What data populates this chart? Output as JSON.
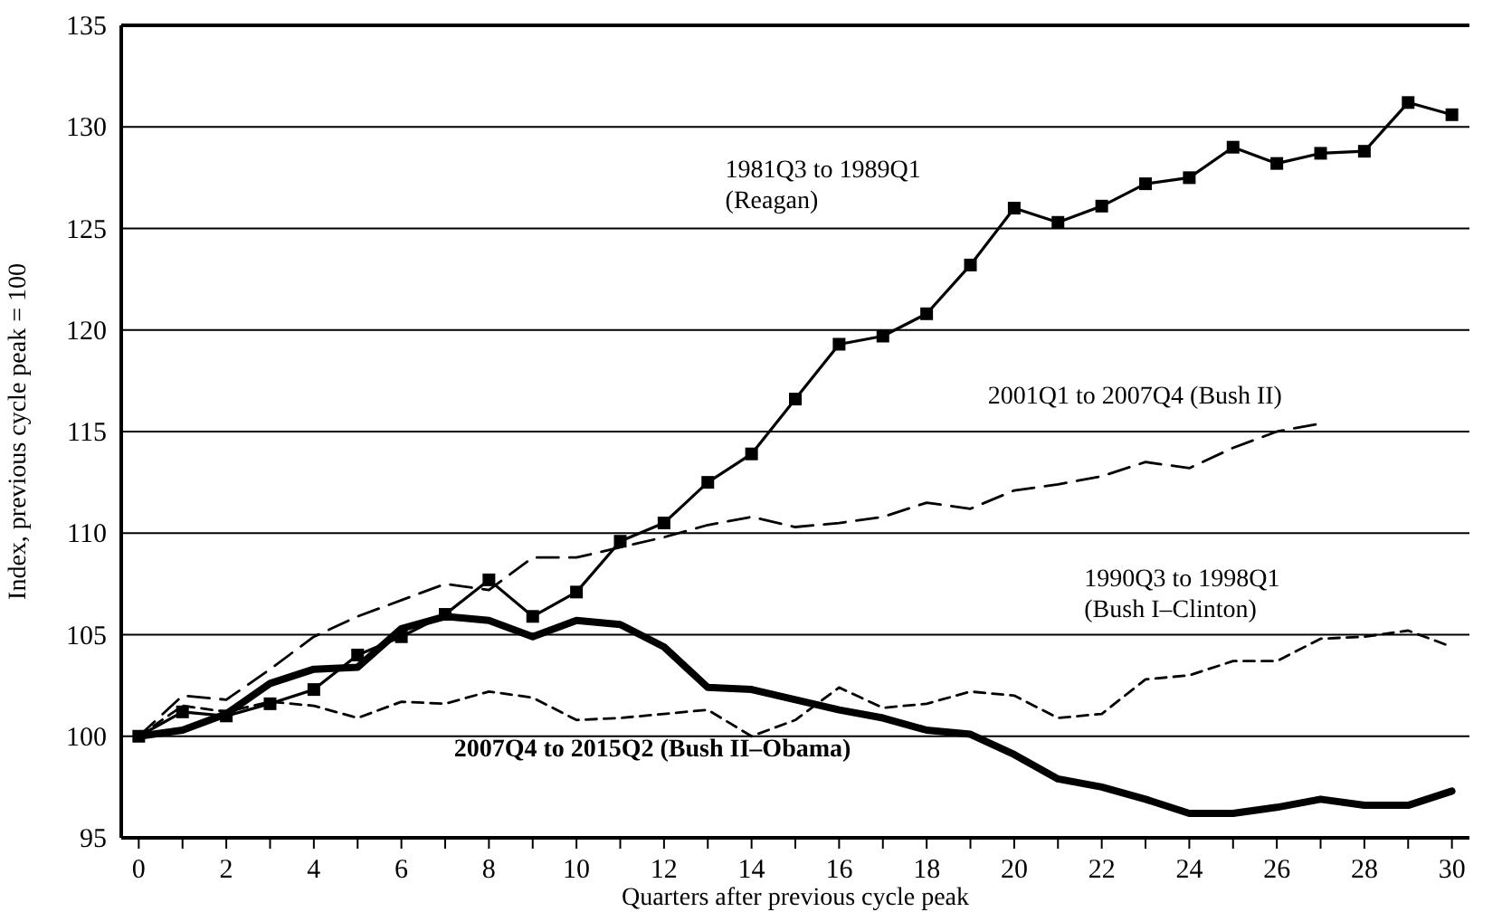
{
  "chart_data": {
    "type": "line",
    "xlabel": "Quarters after previous cycle peak",
    "ylabel": "Index, previous cycle peak = 100",
    "x": [
      0,
      1,
      2,
      3,
      4,
      5,
      6,
      7,
      8,
      9,
      10,
      11,
      12,
      13,
      14,
      15,
      16,
      17,
      18,
      19,
      20,
      21,
      22,
      23,
      24,
      25,
      26,
      27,
      28,
      29,
      30
    ],
    "xlim": [
      -0.4,
      30.4
    ],
    "xticks": [
      0,
      {
        "value": 1,
        "label": null
      },
      2,
      {
        "value": 3,
        "label": null
      },
      4,
      {
        "value": 5,
        "label": null
      },
      6,
      {
        "value": 7,
        "label": null
      },
      8,
      {
        "value": 9,
        "label": null
      },
      10,
      {
        "value": 11,
        "label": null
      },
      12,
      {
        "value": 13,
        "label": null
      },
      14,
      {
        "value": 15,
        "label": null
      },
      16,
      {
        "value": 17,
        "label": null
      },
      18,
      {
        "value": 19,
        "label": null
      },
      20,
      {
        "value": 21,
        "label": null
      },
      22,
      {
        "value": 23,
        "label": null
      },
      24,
      {
        "value": 25,
        "label": null
      },
      26,
      {
        "value": 27,
        "label": null
      },
      28,
      {
        "value": 29,
        "label": null
      },
      30
    ],
    "ylim": [
      95,
      135
    ],
    "yticks": [
      95,
      100,
      105,
      110,
      115,
      120,
      125,
      130,
      135
    ],
    "grid": "y",
    "series": [
      {
        "name": "1981Q3 to 1989Q1\n(Reagan)",
        "color": "#000000",
        "marker": "square",
        "line_style": "solid",
        "values": [
          100,
          101.2,
          101.0,
          101.6,
          102.3,
          104.0,
          104.9,
          106.0,
          107.7,
          105.9,
          107.1,
          109.6,
          110.5,
          112.5,
          113.9,
          116.6,
          119.3,
          119.7,
          120.8,
          123.2,
          126.0,
          125.3,
          126.1,
          127.2,
          127.5,
          129.0,
          128.2,
          128.7,
          128.8,
          131.2,
          130.6
        ]
      },
      {
        "name": "2001Q1 to 2007Q4 (Bush II)",
        "color": "#000000",
        "marker": "none",
        "line_style": "dashed",
        "values": [
          100,
          102.0,
          101.8,
          103.3,
          104.9,
          105.9,
          106.7,
          107.5,
          107.2,
          108.8,
          108.8,
          109.3,
          109.8,
          110.4,
          110.8,
          110.3,
          110.5,
          110.8,
          111.5,
          111.2,
          112.1,
          112.4,
          112.8,
          113.5,
          113.2,
          114.2,
          115.0,
          115.4,
          null,
          null,
          null
        ]
      },
      {
        "name": "1990Q3 to 1998Q1\n(Bush I–Clinton)",
        "color": "#000000",
        "marker": "none",
        "line_style": "dashed",
        "values": [
          100,
          101.5,
          101.2,
          101.7,
          101.5,
          100.9,
          101.7,
          101.6,
          102.2,
          101.9,
          100.8,
          100.9,
          101.1,
          101.3,
          100.0,
          100.8,
          102.4,
          101.4,
          101.6,
          102.2,
          102.0,
          100.9,
          101.1,
          102.8,
          103.0,
          103.7,
          103.7,
          104.8,
          104.9,
          105.2,
          104.4
        ]
      },
      {
        "name": "2007Q4 to 2015Q2 (Bush II–Obama)",
        "color": "#000000",
        "marker": "none",
        "line_style": "solid",
        "values": [
          100,
          100.3,
          101.1,
          102.6,
          103.3,
          103.4,
          105.3,
          105.9,
          105.7,
          104.9,
          105.7,
          105.5,
          104.4,
          102.4,
          102.3,
          101.8,
          101.3,
          100.9,
          100.3,
          100.1,
          99.1,
          97.9,
          97.5,
          96.9,
          96.2,
          96.2,
          96.5,
          96.9,
          96.6,
          96.6,
          97.3
        ]
      }
    ]
  }
}
